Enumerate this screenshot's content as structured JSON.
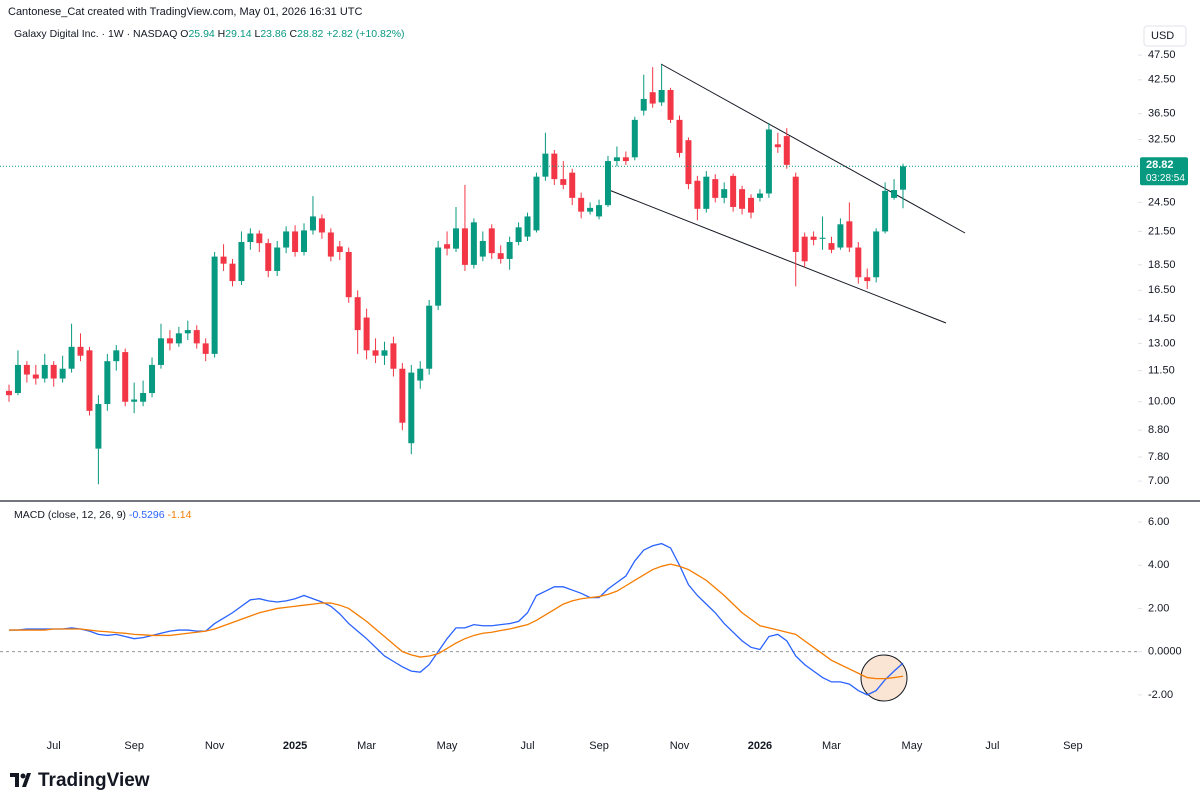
{
  "header": {
    "attribution": "Cantonese_Cat created with TradingView.com, May 01, 2026 16:31 UTC",
    "currency": "USD",
    "countdown": "03:28:54",
    "logo": "TradingView"
  },
  "chart_data": [
    {
      "type": "candlestick",
      "title": "Galaxy Digital Inc. · 1W · NASDAQ",
      "ohlc_legend": {
        "open_label": "O",
        "open": 25.94,
        "high_label": "H",
        "high": 29.14,
        "low_label": "L",
        "low": 23.86,
        "close_label": "C",
        "close": 28.82,
        "change": "+2.82 (+10.82%)"
      },
      "up_color": "#089981",
      "down_color": "#f23645",
      "log_scale": true,
      "grid": false,
      "ylim": [
        6.43,
        49.7
      ],
      "yticks": [
        {
          "value": 7,
          "label": "7.00"
        },
        {
          "value": 7.8,
          "label": "7.80"
        },
        {
          "value": 8.8,
          "label": "8.80"
        },
        {
          "value": 10,
          "label": "10.00"
        },
        {
          "value": 11.5,
          "label": "11.50"
        },
        {
          "value": 13,
          "label": "13.00"
        },
        {
          "value": 14.5,
          "label": "14.50"
        },
        {
          "value": 16.5,
          "label": "16.50"
        },
        {
          "value": 18.5,
          "label": "18.50"
        },
        {
          "value": 21.5,
          "label": "21.50"
        },
        {
          "value": 24.5,
          "label": "24.50"
        },
        {
          "value": 32.5,
          "label": "32.50"
        },
        {
          "value": 36.5,
          "label": "36.50"
        },
        {
          "value": 42.5,
          "label": "42.50"
        },
        {
          "value": 47.5,
          "label": "47.50"
        }
      ],
      "open": [
        10.5,
        10.4,
        11.8,
        11.3,
        11.1,
        11.8,
        11.1,
        11.6,
        12.8,
        12.6,
        8.1,
        9.9,
        12.0,
        12.5,
        10.0,
        10.0,
        10.4,
        11.8,
        13.3,
        13.0,
        13.6,
        13.8,
        13.0,
        12.4,
        19.2,
        18.6,
        17.2,
        20.5,
        21.3,
        20.4,
        18.0,
        20.0,
        21.5,
        19.6,
        21.6,
        22.8,
        21.4,
        20.1,
        19.6,
        16.0,
        14.6,
        12.6,
        12.3,
        13.0,
        11.6,
        8.3,
        11.0,
        11.6,
        15.4,
        20.3,
        19.9,
        21.8,
        18.5,
        19.2,
        21.8,
        19.5,
        19.0,
        20.5,
        21.0,
        21.6,
        27.5,
        30.5,
        27.2,
        28.0,
        25.0,
        23.5,
        23.0,
        24.2,
        29.5,
        30.0,
        30.0,
        37.0,
        40.2,
        38.4,
        40.6,
        35.5,
        32.4,
        27.0,
        23.8,
        27.2,
        25.0,
        27.6,
        26.0,
        25.0,
        25.0,
        25.5,
        31.8,
        33.0,
        27.5,
        21.0,
        21.0,
        20.8,
        20.4,
        20.0,
        22.5,
        20.0,
        17.5,
        17.5,
        21.5,
        25.0,
        25.94,
        null,
        null,
        null,
        null,
        null,
        null,
        null,
        null,
        null,
        null,
        null,
        null,
        null,
        null,
        null,
        null,
        null,
        null,
        null
      ],
      "high": [
        10.8,
        12.6,
        12.0,
        11.8,
        12.4,
        12.0,
        12.3,
        14.2,
        13.6,
        12.8,
        10.3,
        12.4,
        12.9,
        12.7,
        10.9,
        11.0,
        12.2,
        14.2,
        13.8,
        14.0,
        14.4,
        14.1,
        13.3,
        19.6,
        20.3,
        19.0,
        21.5,
        21.8,
        21.6,
        20.8,
        20.6,
        22.0,
        22.1,
        22.3,
        25.2,
        23.2,
        21.8,
        20.6,
        20.0,
        16.5,
        15.2,
        13.3,
        13.1,
        13.4,
        11.9,
        11.8,
        12.0,
        15.8,
        20.6,
        21.5,
        24.0,
        26.5,
        22.8,
        21.5,
        22.2,
        20.2,
        21.0,
        22.4,
        23.4,
        28.0,
        33.5,
        31.0,
        29.5,
        28.5,
        25.6,
        24.5,
        24.8,
        30.2,
        31.5,
        30.8,
        36.0,
        43.5,
        45.0,
        45.5,
        41.0,
        36.2,
        32.8,
        27.6,
        28.2,
        27.8,
        26.8,
        27.9,
        26.4,
        25.4,
        26.0,
        35.0,
        33.5,
        34.2,
        28.0,
        21.4,
        21.5,
        23.0,
        21.0,
        22.8,
        24.5,
        20.5,
        18.2,
        21.8,
        26.8,
        27.2,
        29.14,
        null,
        null,
        null,
        null,
        null,
        null,
        null,
        null,
        null,
        null,
        null,
        null,
        null,
        null,
        null,
        null,
        null,
        null,
        null
      ],
      "low": [
        10.0,
        10.3,
        10.9,
        10.8,
        10.9,
        10.7,
        10.9,
        11.4,
        12.0,
        9.4,
        6.9,
        9.6,
        11.5,
        9.8,
        9.5,
        9.8,
        10.2,
        11.6,
        12.6,
        12.8,
        13.2,
        12.7,
        12.0,
        12.2,
        18.0,
        16.8,
        16.9,
        19.8,
        19.6,
        17.5,
        17.6,
        19.5,
        19.2,
        19.3,
        21.2,
        20.8,
        18.8,
        18.9,
        15.6,
        12.4,
        12.1,
        11.9,
        11.8,
        11.2,
        8.8,
        7.9,
        10.6,
        11.3,
        15.1,
        19.3,
        19.6,
        18.0,
        18.2,
        18.8,
        19.0,
        18.6,
        18.1,
        20.2,
        20.6,
        21.4,
        27.0,
        26.5,
        26.0,
        24.2,
        22.8,
        23.2,
        22.7,
        24.0,
        28.8,
        29.0,
        29.6,
        36.2,
        37.5,
        37.8,
        35.0,
        30.0,
        26.0,
        22.6,
        23.4,
        24.5,
        24.4,
        23.5,
        23.2,
        22.8,
        24.6,
        25.0,
        30.6,
        28.5,
        16.8,
        18.3,
        20.2,
        19.8,
        19.5,
        19.8,
        19.6,
        17.0,
        16.6,
        17.1,
        21.3,
        24.8,
        23.86,
        null,
        null,
        null,
        null,
        null,
        null,
        null,
        null,
        null,
        null,
        null,
        null,
        null,
        null,
        null,
        null,
        null,
        null,
        null
      ],
      "close": [
        10.3,
        11.8,
        11.3,
        11.1,
        11.8,
        11.1,
        11.6,
        12.8,
        12.3,
        9.6,
        9.9,
        12.0,
        12.6,
        10.0,
        10.1,
        10.4,
        11.8,
        13.3,
        13.0,
        13.6,
        13.8,
        13.0,
        12.4,
        19.2,
        18.6,
        17.2,
        20.5,
        21.3,
        20.4,
        18.0,
        20.0,
        21.5,
        19.6,
        21.6,
        23.0,
        21.4,
        19.2,
        19.6,
        16.0,
        13.8,
        12.6,
        12.3,
        12.6,
        11.6,
        9.1,
        11.4,
        11.6,
        15.4,
        20.0,
        19.9,
        21.8,
        18.5,
        22.4,
        20.6,
        19.5,
        19.0,
        20.5,
        21.9,
        23.0,
        27.5,
        30.5,
        27.2,
        26.5,
        25.0,
        23.5,
        23.9,
        24.2,
        29.5,
        30.0,
        29.5,
        35.5,
        39.0,
        38.2,
        40.6,
        35.5,
        30.6,
        26.6,
        23.8,
        27.5,
        25.0,
        26.0,
        24.0,
        23.8,
        23.4,
        25.5,
        34.0,
        31.4,
        29.0,
        19.6,
        18.8,
        20.7,
        20.9,
        19.8,
        22.2,
        20.0,
        17.5,
        17.2,
        21.5,
        25.8,
        25.9,
        28.82,
        null,
        null,
        null,
        null,
        null,
        null,
        null,
        null,
        null,
        null,
        null,
        null,
        null,
        null,
        null,
        null,
        null,
        null,
        null
      ]
    },
    {
      "type": "macd",
      "title": "MACD (close, 12, 26, 9)",
      "grid": false,
      "ylim": [
        -3.95,
        6.88
      ],
      "yticks": [
        {
          "value": -2,
          "label": "-2.00"
        },
        {
          "value": 0,
          "label": "0.0000"
        },
        {
          "value": 2,
          "label": "2.00"
        },
        {
          "value": 4,
          "label": "4.00"
        },
        {
          "value": 6,
          "label": "6.00"
        }
      ],
      "categories": [
        null,
        null,
        null,
        null,
        null,
        "Jul",
        null,
        null,
        null,
        null,
        null,
        null,
        null,
        null,
        "Sep",
        null,
        null,
        null,
        null,
        null,
        null,
        null,
        null,
        "Nov",
        null,
        null,
        null,
        null,
        null,
        null,
        null,
        null,
        "2025",
        null,
        null,
        null,
        null,
        null,
        null,
        null,
        "Mar",
        null,
        null,
        null,
        null,
        null,
        null,
        null,
        null,
        "May",
        null,
        null,
        null,
        null,
        null,
        null,
        null,
        null,
        "Jul",
        null,
        null,
        null,
        null,
        null,
        null,
        null,
        "Sep",
        null,
        null,
        null,
        null,
        null,
        null,
        null,
        null,
        "Nov",
        null,
        null,
        null,
        null,
        null,
        null,
        null,
        null,
        "2026",
        null,
        null,
        null,
        null,
        null,
        null,
        null,
        "Mar",
        null,
        null,
        null,
        null,
        null,
        null,
        null,
        null,
        "May",
        null,
        null,
        null,
        null,
        null,
        null,
        null,
        null,
        "Jul",
        null,
        null,
        null,
        null,
        null,
        null,
        null,
        null,
        "Sep"
      ],
      "series": [
        {
          "color": "#2962ff",
          "values": [
            1.0,
            1.0,
            1.05,
            1.05,
            1.05,
            1.05,
            1.05,
            1.1,
            1.05,
            0.95,
            0.8,
            0.75,
            0.8,
            0.7,
            0.6,
            0.65,
            0.75,
            0.85,
            0.95,
            1.0,
            1.0,
            0.95,
            0.95,
            1.3,
            1.55,
            1.8,
            2.1,
            2.4,
            2.45,
            2.35,
            2.3,
            2.35,
            2.45,
            2.6,
            2.45,
            2.3,
            2.1,
            1.75,
            1.3,
            0.95,
            0.6,
            0.2,
            -0.2,
            -0.45,
            -0.7,
            -0.9,
            -0.95,
            -0.6,
            0.0,
            0.6,
            1.1,
            1.1,
            1.25,
            1.2,
            1.2,
            1.25,
            1.3,
            1.4,
            1.8,
            2.6,
            2.8,
            3.0,
            3.0,
            2.85,
            2.7,
            2.5,
            2.5,
            2.9,
            3.2,
            3.5,
            4.2,
            4.7,
            4.9,
            5.0,
            4.8,
            4.0,
            3.1,
            2.6,
            2.2,
            1.8,
            1.3,
            0.9,
            0.5,
            0.2,
            0.1,
            0.7,
            0.8,
            0.5,
            -0.2,
            -0.6,
            -0.9,
            -1.2,
            -1.4,
            -1.4,
            -1.5,
            -1.8,
            -2.0,
            -1.8,
            -1.3,
            -0.9,
            -0.5296,
            null,
            null,
            null,
            null,
            null,
            null,
            null,
            null,
            null,
            null,
            null,
            null,
            null,
            null,
            null,
            null,
            null,
            null,
            null
          ]
        },
        {
          "color": "#f57c00",
          "values": [
            1.0,
            1.0,
            1.0,
            1.0,
            1.0,
            1.05,
            1.05,
            1.05,
            1.05,
            1.0,
            0.95,
            0.92,
            0.88,
            0.85,
            0.8,
            0.78,
            0.75,
            0.75,
            0.75,
            0.8,
            0.85,
            0.9,
            0.95,
            1.05,
            1.2,
            1.35,
            1.5,
            1.65,
            1.8,
            1.9,
            2.0,
            2.05,
            2.1,
            2.15,
            2.2,
            2.25,
            2.25,
            2.15,
            2.0,
            1.7,
            1.4,
            1.05,
            0.7,
            0.35,
            0.0,
            -0.15,
            -0.25,
            -0.2,
            -0.1,
            0.15,
            0.4,
            0.6,
            0.75,
            0.85,
            0.9,
            0.98,
            1.05,
            1.15,
            1.25,
            1.45,
            1.7,
            1.95,
            2.2,
            2.35,
            2.45,
            2.5,
            2.55,
            2.65,
            2.8,
            3.05,
            3.3,
            3.55,
            3.8,
            3.95,
            4.05,
            3.95,
            3.8,
            3.55,
            3.3,
            2.95,
            2.6,
            2.2,
            1.8,
            1.5,
            1.2,
            1.1,
            1.0,
            0.9,
            0.8,
            0.5,
            0.2,
            -0.1,
            -0.4,
            -0.6,
            -0.8,
            -1.0,
            -1.2,
            -1.25,
            -1.25,
            -1.2,
            -1.14,
            null,
            null,
            null,
            null,
            null,
            null,
            null,
            null,
            null,
            null,
            null,
            null,
            null,
            null,
            null,
            null,
            null,
            null,
            null
          ]
        }
      ]
    }
  ]
}
